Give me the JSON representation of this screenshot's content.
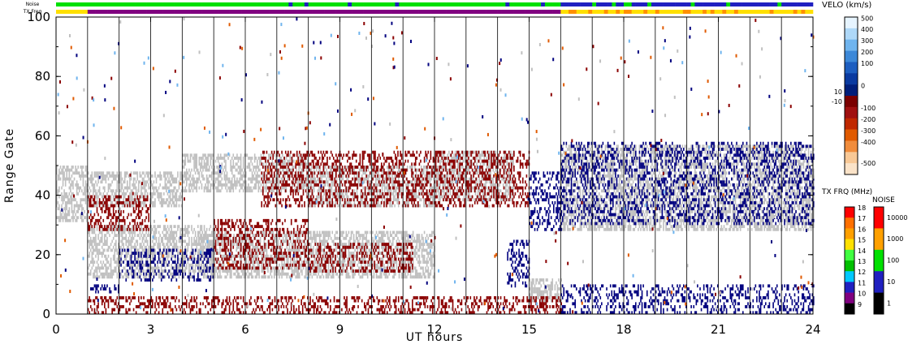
{
  "header": {
    "noise_label": "Noise",
    "txfreq_label": "TX Freq"
  },
  "chart_data": {
    "type": "heatmap",
    "title": "",
    "xlabel": "UT hours",
    "ylabel": "Range Gate",
    "xlim": [
      0,
      24
    ],
    "ylim": [
      0,
      100
    ],
    "x_ticks": [
      "0",
      "3",
      "6",
      "9",
      "12",
      "15",
      "18",
      "21",
      "24"
    ],
    "y_ticks": [
      "0",
      "20",
      "40",
      "60",
      "80",
      "100"
    ],
    "hour_gridlines": [
      1,
      2,
      3,
      4,
      5,
      6,
      7,
      8,
      9,
      10,
      11,
      12,
      13,
      14,
      15,
      16,
      17,
      18,
      19,
      20,
      21,
      22,
      23
    ],
    "colors": {
      "ground_scatter": "#c0c0c0",
      "negative_velocity": "#8b0000",
      "positive_velocity": "#00007f",
      "noise_low": "#00e000",
      "noise_high": "#2020c0",
      "freq_low": "#800080",
      "freq_high": "#ffe000"
    },
    "velocity_colorbar": {
      "title": "VELO (km/s)",
      "ticks": [
        "500",
        "400",
        "300",
        "200",
        "100",
        "10",
        "0",
        "-10",
        "-100",
        "-200",
        "-300",
        "-400",
        "-500"
      ],
      "colors": [
        "#e6f4ff",
        "#aed8f8",
        "#6fb4ee",
        "#3c88d8",
        "#1d5ec0",
        "#0a3aa0",
        "#001e7a",
        "#7a0000",
        "#a01010",
        "#c02800",
        "#e05a00",
        "#f08c3c",
        "#f8c896",
        "#fbe3c8"
      ]
    },
    "txfreq_colorbar": {
      "title": "TX FRQ (MHz)",
      "ticks": [
        "18",
        "17",
        "16",
        "15",
        "14",
        "13",
        "12",
        "11",
        "10",
        "9"
      ],
      "colors": [
        "#ff0000",
        "#ff7000",
        "#ffa000",
        "#ffe000",
        "#40ff40",
        "#00c000",
        "#00c8ff",
        "#2020c0",
        "#800080",
        "#000000"
      ]
    },
    "noise_colorbar": {
      "title": "NOISE",
      "ticks": [
        "10000",
        "1000",
        "100",
        "10",
        "1"
      ],
      "colors": [
        "#ff0000",
        "#ffa000",
        "#00e000",
        "#2020c0",
        "#000000"
      ]
    },
    "scatter_regions": [
      {
        "kind": "ground",
        "t0": 0.0,
        "t1": 1.0,
        "g0": 31,
        "g1": 50
      },
      {
        "kind": "ground",
        "t0": 1.0,
        "t1": 4.0,
        "g0": 36,
        "g1": 48
      },
      {
        "kind": "ground",
        "t0": 4.0,
        "t1": 8.0,
        "g0": 41,
        "g1": 54
      },
      {
        "kind": "ground",
        "t0": 8.0,
        "t1": 12.0,
        "g0": 36,
        "g1": 50
      },
      {
        "kind": "ground",
        "t0": 12.0,
        "t1": 14.5,
        "g0": 38,
        "g1": 55
      },
      {
        "kind": "ground",
        "t0": 16.0,
        "t1": 24.0,
        "g0": 28,
        "g1": 57
      },
      {
        "kind": "ground",
        "t0": 1.0,
        "t1": 5.0,
        "g0": 12,
        "g1": 30
      },
      {
        "kind": "ground",
        "t0": 4.5,
        "t1": 12.0,
        "g0": 12,
        "g1": 28
      },
      {
        "kind": "ground",
        "t0": 15.0,
        "t1": 16.0,
        "g0": 4,
        "g1": 12
      },
      {
        "kind": "negative",
        "t0": 1.0,
        "t1": 3.0,
        "g0": 28,
        "g1": 40
      },
      {
        "kind": "negative",
        "t0": 5.0,
        "t1": 8.0,
        "g0": 15,
        "g1": 32
      },
      {
        "kind": "negative",
        "t0": 8.0,
        "t1": 11.3,
        "g0": 14,
        "g1": 24
      },
      {
        "kind": "negative",
        "t0": 1.0,
        "t1": 16.0,
        "g0": 0,
        "g1": 6
      },
      {
        "kind": "negative",
        "t0": 6.5,
        "t1": 15.0,
        "g0": 36,
        "g1": 55
      },
      {
        "kind": "positive",
        "t0": 1.0,
        "t1": 2.0,
        "g0": 7,
        "g1": 10
      },
      {
        "kind": "positive",
        "t0": 2.0,
        "t1": 5.0,
        "g0": 11,
        "g1": 22
      },
      {
        "kind": "positive",
        "t0": 14.3,
        "t1": 15.0,
        "g0": 9,
        "g1": 25
      },
      {
        "kind": "positive",
        "t0": 15.0,
        "t1": 16.0,
        "g0": 28,
        "g1": 48
      },
      {
        "kind": "positive",
        "t0": 16.0,
        "t1": 24.0,
        "g0": 30,
        "g1": 58
      },
      {
        "kind": "positive",
        "t0": 16.0,
        "t1": 24.0,
        "g0": 0,
        "g1": 10
      }
    ]
  }
}
